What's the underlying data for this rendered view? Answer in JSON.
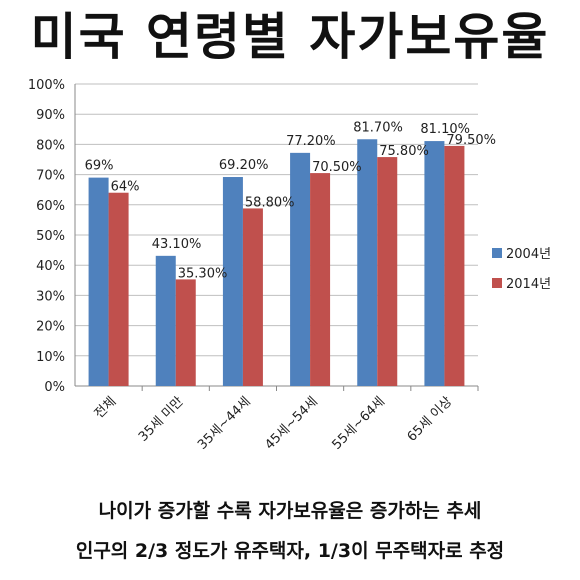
{
  "title": "미국 연령별 자가보유율",
  "chart_data": {
    "type": "bar",
    "categories": [
      "전체",
      "35세 미만",
      "35세~44세",
      "45세~54세",
      "55세~64세",
      "65세 이상"
    ],
    "series": [
      {
        "name": "2004년",
        "color": "#4F81BD",
        "values": [
          69,
          43.1,
          69.2,
          77.2,
          81.7,
          81.1
        ],
        "labels": [
          "69%",
          "43.10%",
          "69.20%",
          "77.20%",
          "81.70%",
          "81.10%"
        ]
      },
      {
        "name": "2014년",
        "color": "#C0504D",
        "values": [
          64,
          35.3,
          58.8,
          70.5,
          75.8,
          79.5
        ],
        "labels": [
          "64%",
          "35.30%",
          "58.80%",
          "70.50%",
          "75.80%",
          "79.50%"
        ]
      }
    ],
    "ylim": [
      0,
      100
    ],
    "yticks": [
      "0%",
      "10%",
      "20%",
      "30%",
      "40%",
      "50%",
      "60%",
      "70%",
      "80%",
      "90%",
      "100%"
    ],
    "grid": true,
    "legend_position": "right"
  },
  "captions": [
    "나이가 증가할 수록 자가보유율은 증가하는 추세",
    "인구의 2/3 정도가 유주택자, 1/3이 무주택자로 추정"
  ]
}
